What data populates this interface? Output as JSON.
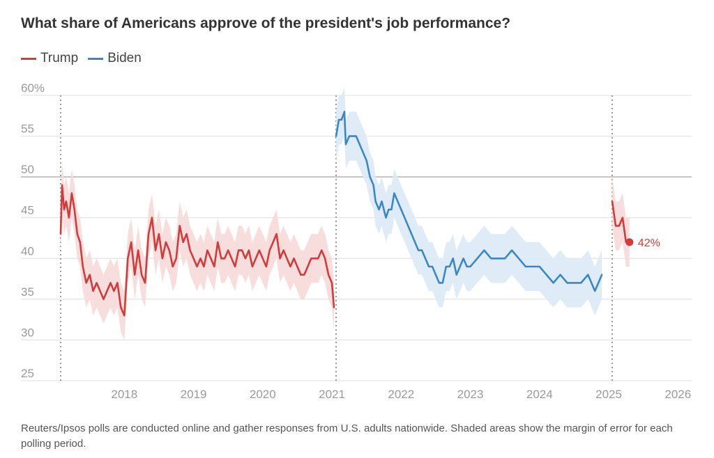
{
  "title": "What share of Americans approve of the president's job performance?",
  "legend": [
    {
      "name": "Trump",
      "color": "#d33a3a"
    },
    {
      "name": "Biden",
      "color": "#3a87c8"
    }
  ],
  "footnote": "Reuters/Ipsos polls are conducted online and gather responses from U.S. adults nationwide. Shaded areas show the margin of error for each polling period.",
  "end_label": "42%",
  "chart_data": {
    "type": "line",
    "title": "What share of Americans approve of the president's job performance?",
    "xlabel": "",
    "ylabel": "",
    "x_axis": {
      "min": 2017.0,
      "max": 2026.1,
      "tick_values": [
        2018,
        2019,
        2020,
        2021,
        2022,
        2023,
        2024,
        2025,
        2026
      ],
      "tick_labels": [
        "2018",
        "2019",
        "2020",
        "2021",
        "2022",
        "2023",
        "2024",
        "2025",
        "2026"
      ]
    },
    "y_axis": {
      "min": 25,
      "max": 60,
      "tick_values": [
        25,
        30,
        35,
        40,
        45,
        50,
        55,
        60
      ],
      "tick_labels": [
        "25",
        "30",
        "35",
        "40",
        "45",
        "50",
        "55",
        "60%"
      ]
    },
    "grid": true,
    "highlight_lines": [
      2017.08,
      2021.06,
      2025.05
    ],
    "baseline_emphasis": 50,
    "band_note": "margin of error",
    "series": [
      {
        "name": "Trump",
        "color": "#d33a3a",
        "band_color": "#f7d9d9",
        "margin": 3,
        "points": [
          [
            2017.08,
            43
          ],
          [
            2017.1,
            49
          ],
          [
            2017.13,
            46
          ],
          [
            2017.16,
            47
          ],
          [
            2017.2,
            45
          ],
          [
            2017.24,
            48
          ],
          [
            2017.28,
            46
          ],
          [
            2017.32,
            43
          ],
          [
            2017.36,
            42
          ],
          [
            2017.4,
            39
          ],
          [
            2017.45,
            37
          ],
          [
            2017.5,
            38
          ],
          [
            2017.55,
            36
          ],
          [
            2017.6,
            37
          ],
          [
            2017.65,
            36
          ],
          [
            2017.7,
            35
          ],
          [
            2017.75,
            36
          ],
          [
            2017.8,
            37
          ],
          [
            2017.85,
            36
          ],
          [
            2017.9,
            37
          ],
          [
            2017.95,
            34
          ],
          [
            2018.0,
            33
          ],
          [
            2018.05,
            40
          ],
          [
            2018.1,
            42
          ],
          [
            2018.15,
            38
          ],
          [
            2018.2,
            41
          ],
          [
            2018.25,
            38
          ],
          [
            2018.3,
            37
          ],
          [
            2018.35,
            43
          ],
          [
            2018.4,
            45
          ],
          [
            2018.45,
            41
          ],
          [
            2018.5,
            43
          ],
          [
            2018.55,
            40
          ],
          [
            2018.6,
            42
          ],
          [
            2018.65,
            41
          ],
          [
            2018.7,
            39
          ],
          [
            2018.75,
            40
          ],
          [
            2018.8,
            44
          ],
          [
            2018.85,
            42
          ],
          [
            2018.9,
            43
          ],
          [
            2018.95,
            41
          ],
          [
            2019.0,
            40
          ],
          [
            2019.05,
            39
          ],
          [
            2019.1,
            40
          ],
          [
            2019.15,
            39
          ],
          [
            2019.2,
            41
          ],
          [
            2019.25,
            40
          ],
          [
            2019.3,
            39
          ],
          [
            2019.35,
            42
          ],
          [
            2019.4,
            40
          ],
          [
            2019.45,
            40
          ],
          [
            2019.5,
            41
          ],
          [
            2019.55,
            40
          ],
          [
            2019.6,
            39
          ],
          [
            2019.65,
            41
          ],
          [
            2019.7,
            41
          ],
          [
            2019.75,
            40
          ],
          [
            2019.8,
            41
          ],
          [
            2019.85,
            39
          ],
          [
            2019.9,
            40
          ],
          [
            2019.95,
            41
          ],
          [
            2020.0,
            40
          ],
          [
            2020.05,
            39
          ],
          [
            2020.1,
            41
          ],
          [
            2020.15,
            42
          ],
          [
            2020.2,
            43
          ],
          [
            2020.25,
            40
          ],
          [
            2020.3,
            41
          ],
          [
            2020.35,
            40
          ],
          [
            2020.4,
            39
          ],
          [
            2020.45,
            40
          ],
          [
            2020.5,
            39
          ],
          [
            2020.55,
            38
          ],
          [
            2020.6,
            38
          ],
          [
            2020.65,
            39
          ],
          [
            2020.7,
            40
          ],
          [
            2020.75,
            40
          ],
          [
            2020.8,
            40
          ],
          [
            2020.85,
            41
          ],
          [
            2020.9,
            40
          ],
          [
            2020.95,
            38
          ],
          [
            2021.0,
            37
          ],
          [
            2021.03,
            34
          ]
        ]
      },
      {
        "name": "Biden",
        "color": "#3a87c8",
        "band_color": "#dceaf6",
        "margin": 3,
        "points": [
          [
            2021.06,
            55
          ],
          [
            2021.1,
            57
          ],
          [
            2021.14,
            57
          ],
          [
            2021.18,
            58
          ],
          [
            2021.2,
            54
          ],
          [
            2021.25,
            55
          ],
          [
            2021.3,
            55
          ],
          [
            2021.35,
            55
          ],
          [
            2021.4,
            54
          ],
          [
            2021.45,
            53
          ],
          [
            2021.5,
            52
          ],
          [
            2021.55,
            50
          ],
          [
            2021.6,
            49
          ],
          [
            2021.63,
            47
          ],
          [
            2021.68,
            46
          ],
          [
            2021.72,
            47
          ],
          [
            2021.78,
            45
          ],
          [
            2021.82,
            46
          ],
          [
            2021.86,
            46
          ],
          [
            2021.9,
            48
          ],
          [
            2021.95,
            47
          ],
          [
            2022.0,
            46
          ],
          [
            2022.05,
            45
          ],
          [
            2022.1,
            44
          ],
          [
            2022.15,
            43
          ],
          [
            2022.2,
            42
          ],
          [
            2022.25,
            41
          ],
          [
            2022.3,
            41
          ],
          [
            2022.35,
            40
          ],
          [
            2022.4,
            39
          ],
          [
            2022.45,
            39
          ],
          [
            2022.5,
            38
          ],
          [
            2022.55,
            37
          ],
          [
            2022.6,
            37
          ],
          [
            2022.65,
            39
          ],
          [
            2022.7,
            39
          ],
          [
            2022.75,
            40
          ],
          [
            2022.8,
            38
          ],
          [
            2022.85,
            39
          ],
          [
            2022.9,
            40
          ],
          [
            2022.95,
            39
          ],
          [
            2023.0,
            39
          ],
          [
            2023.1,
            40
          ],
          [
            2023.2,
            41
          ],
          [
            2023.3,
            40
          ],
          [
            2023.4,
            40
          ],
          [
            2023.5,
            40
          ],
          [
            2023.6,
            41
          ],
          [
            2023.7,
            40
          ],
          [
            2023.8,
            39
          ],
          [
            2023.9,
            39
          ],
          [
            2024.0,
            39
          ],
          [
            2024.1,
            38
          ],
          [
            2024.2,
            37
          ],
          [
            2024.3,
            38
          ],
          [
            2024.4,
            37
          ],
          [
            2024.5,
            37
          ],
          [
            2024.6,
            37
          ],
          [
            2024.7,
            38
          ],
          [
            2024.8,
            36
          ],
          [
            2024.9,
            38
          ]
        ]
      },
      {
        "name": "Trump",
        "color": "#d33a3a",
        "band_color": "#f7d9d9",
        "margin": 3,
        "points": [
          [
            2025.05,
            47
          ],
          [
            2025.1,
            44
          ],
          [
            2025.15,
            44
          ],
          [
            2025.2,
            45
          ],
          [
            2025.25,
            42
          ],
          [
            2025.3,
            42
          ]
        ]
      }
    ]
  }
}
